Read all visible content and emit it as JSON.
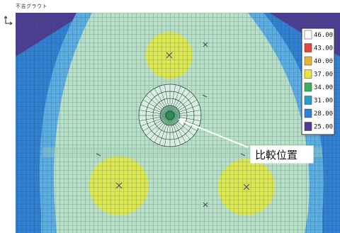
{
  "caption": "不吉グラウト",
  "callout": {
    "label": "比較位置"
  },
  "legend": {
    "values": [
      "46.00",
      "43.00",
      "40.00",
      "37.00",
      "34.00",
      "31.00",
      "28.00",
      "25.00"
    ],
    "colors": [
      "#ffffff",
      "#e0483e",
      "#e8b43a",
      "#e6e63c",
      "#3cae5a",
      "#2c9ad0",
      "#2f7fd6",
      "#4e3c98"
    ]
  },
  "colors": {
    "background": "#2f80d8",
    "outer_band": "#5aaee8",
    "main_region": "#b8e0c6",
    "hot_spot": "#dfe84a",
    "corner": "#4e3c98",
    "grid_line": "#2a4a3a"
  }
}
